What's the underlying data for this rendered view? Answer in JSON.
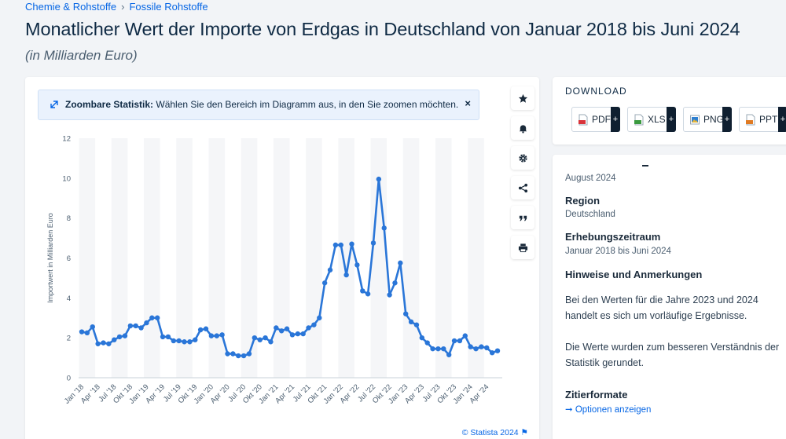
{
  "breadcrumb": {
    "item1": "Chemie & Rohstoffe",
    "separator": "›",
    "item2": "Fossile Rohstoffe"
  },
  "header": {
    "title": "Monatlicher Wert der Importe von Erdgas in Deutschland von Januar 2018 bis Juni 2024",
    "subtitle": "(in Milliarden Euro)"
  },
  "zoom_hint": {
    "bold": "Zoombare Statistik:",
    "text": " Wählen Sie den Bereich im Diagramm aus, in den Sie zoomen möchten.",
    "close": "×"
  },
  "copyright": "© Statista 2024",
  "toolbar": [
    "star-icon",
    "bell-icon",
    "gear-icon",
    "share-icon",
    "quote-icon",
    "print-icon"
  ],
  "download": {
    "heading": "DOWNLOAD",
    "buttons": [
      {
        "label": "PDF",
        "plus": "+",
        "color": "#d9343a"
      },
      {
        "label": "XLS",
        "plus": "+",
        "color": "#3a9a3f"
      },
      {
        "label": "PNG",
        "plus": "+",
        "color": "#2d7fd1"
      },
      {
        "label": "PPT",
        "plus": "+",
        "color": "#e07a22"
      }
    ]
  },
  "info": {
    "date": "August 2024",
    "region_label": "Region",
    "region_value": "Deutschland",
    "period_label": "Erhebungszeitraum",
    "period_value": "Januar 2018 bis Juni 2024",
    "notes_label": "Hinweise und Anmerkungen",
    "note1": "Bei den Werten für die Jahre 2023 und 2024 handelt es sich um vorläufige Ergebnisse.",
    "note2": "Die Werte wurden zum besseren Verständnis der Statistik gerundet.",
    "cite_label": "Zitierformate",
    "cite_link": "➞ Optionen anzeigen"
  },
  "chart_data": {
    "type": "line",
    "ylabel": "Importwert in Milliarden Euro",
    "ylim": [
      0,
      12
    ],
    "yticks": [
      0,
      2,
      4,
      6,
      8,
      10,
      12
    ],
    "x_tick_labels": [
      "Jan '18",
      "Apr '18",
      "Jul '18",
      "Okt '18",
      "Jan '19",
      "Apr '19",
      "Jul '19",
      "Okt '19",
      "Jan '20",
      "Apr '20",
      "Jul '20",
      "Okt '20",
      "Jan '21",
      "Apr '21",
      "Jul '21",
      "Okt '21",
      "Jan '22",
      "Apr '22",
      "Jul '22",
      "Okt '22",
      "Jan '23",
      "Apr '23",
      "Jul '23",
      "Okt '23",
      "Jan '24",
      "Apr '24"
    ],
    "line_color": "#2a76d8",
    "grid": "alternating-bands",
    "series": [
      {
        "values": [
          2.3,
          2.25,
          2.55,
          1.7,
          1.75,
          1.7,
          1.9,
          2.05,
          2.1,
          2.6,
          2.6,
          2.5,
          2.75,
          3.0,
          3.0,
          2.05,
          2.05,
          1.85,
          1.85,
          1.8,
          1.8,
          1.9,
          2.4,
          2.45,
          2.1,
          2.1,
          2.15,
          1.2,
          1.2,
          1.1,
          1.1,
          1.2,
          2.0,
          1.9,
          2.0,
          1.8,
          2.5,
          2.35,
          2.45,
          2.15,
          2.2,
          2.2,
          2.5,
          2.65,
          3.0,
          4.75,
          5.4,
          6.65,
          6.65,
          5.15,
          6.7,
          5.65,
          4.35,
          4.2,
          6.75,
          9.95,
          7.5,
          4.15,
          4.75,
          5.75,
          3.2,
          2.8,
          2.65,
          2.0,
          1.75,
          1.45,
          1.45,
          1.45,
          1.15,
          1.85,
          1.85,
          2.1,
          1.55,
          1.45,
          1.55,
          1.5,
          1.25,
          1.35
        ]
      }
    ]
  }
}
